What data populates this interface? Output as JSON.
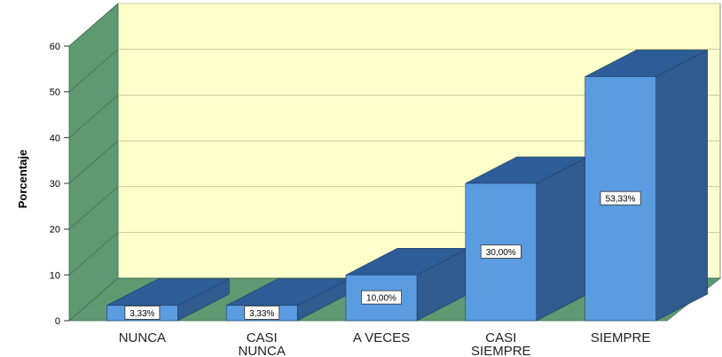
{
  "chart_data": {
    "type": "bar",
    "style": "3d",
    "ylabel": "Porcentaje",
    "xlabel": "",
    "ylim": [
      0,
      60
    ],
    "yticks": [
      "0",
      "10",
      "20",
      "30",
      "40",
      "50",
      "60"
    ],
    "categories": [
      [
        "NUNCA"
      ],
      [
        "CASI",
        "NUNCA"
      ],
      [
        "A VECES"
      ],
      [
        "CASI",
        "SIEMPRE"
      ],
      [
        "SIEMPRE"
      ]
    ],
    "values": [
      3.33,
      3.33,
      10.0,
      30.0,
      53.33
    ],
    "data_labels": [
      "3,33%",
      "3,33%",
      "10,00%",
      "30,00%",
      "53,33%"
    ],
    "grid": true,
    "colors": {
      "bar_front": "#5b9bdf",
      "bar_top": "#2d5d96",
      "bar_side": "#2f5b8f",
      "back_wall": "#ffffcc",
      "side_wall": "#5d9a72",
      "floor": "#5d9a72",
      "gridline": "#c9c99a"
    }
  }
}
